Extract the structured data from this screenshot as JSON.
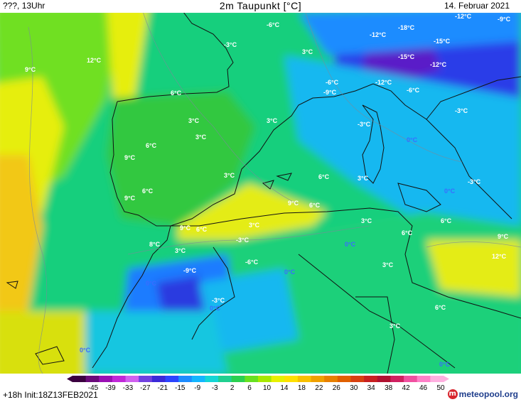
{
  "header": {
    "left": "???, 13Uhr",
    "title": "2m Taupunkt [°C]",
    "date": "14. Februar 2021"
  },
  "footer": {
    "run": "+18h  Init:18Z13FEB2021",
    "brand": "meteopool.org",
    "brand_icon": "meteopool-logo-icon"
  },
  "legend": {
    "ticks": [
      "-45",
      "-39",
      "-33",
      "-27",
      "-21",
      "-15",
      "-9",
      "-3",
      "2",
      "6",
      "10",
      "14",
      "18",
      "22",
      "26",
      "30",
      "34",
      "38",
      "42",
      "46",
      "50"
    ],
    "colors": [
      "#3b0040",
      "#6a0a7a",
      "#9a10b4",
      "#c028d8",
      "#d060f0",
      "#7040e0",
      "#3a2ad8",
      "#2c44ff",
      "#1d8cff",
      "#13b6ff",
      "#14d6d6",
      "#20d090",
      "#2ad050",
      "#68e020",
      "#a8e800",
      "#e8f000",
      "#ffe000",
      "#f8c000",
      "#f0a000",
      "#e88000",
      "#e06000",
      "#d84010",
      "#c82020",
      "#b01030",
      "#d02060",
      "#f050a0",
      "#ff80c8",
      "#ffb0e0"
    ]
  },
  "map_labels": [
    {
      "text": "-6°C",
      "c": "w"
    },
    {
      "text": "-18°C",
      "c": "w"
    },
    {
      "text": "-12°C",
      "c": "w"
    },
    {
      "text": "-9°C",
      "c": "w"
    },
    {
      "text": "-3°C",
      "c": "w"
    },
    {
      "text": "3°C",
      "c": "w"
    },
    {
      "text": "-12°C",
      "c": "w"
    },
    {
      "text": "-15°C",
      "c": "w"
    },
    {
      "text": "9°C",
      "c": "w"
    },
    {
      "text": "12°C",
      "c": "w"
    },
    {
      "text": "-15°C",
      "c": "w"
    },
    {
      "text": "-12°C",
      "c": "w"
    },
    {
      "text": "-6°C",
      "c": "w"
    },
    {
      "text": "-12°C",
      "c": "w"
    },
    {
      "text": "-9°C",
      "c": "w"
    },
    {
      "text": "-6°C",
      "c": "w"
    },
    {
      "text": "6°C",
      "c": "w"
    },
    {
      "text": "-3°C",
      "c": "w"
    },
    {
      "text": "3°C",
      "c": "w"
    },
    {
      "text": "3°C",
      "c": "w"
    },
    {
      "text": "3°C",
      "c": "w"
    },
    {
      "text": "-3°C",
      "c": "w"
    },
    {
      "text": "6°C",
      "c": "w"
    },
    {
      "text": "0°C",
      "c": "b"
    },
    {
      "text": "9°C",
      "c": "w"
    },
    {
      "text": "3°C",
      "c": "w"
    },
    {
      "text": "6°C",
      "c": "w"
    },
    {
      "text": "3°C",
      "c": "w"
    },
    {
      "text": "6°C",
      "c": "w"
    },
    {
      "text": "0°C",
      "c": "b"
    },
    {
      "text": "-3°C",
      "c": "w"
    },
    {
      "text": "9°C",
      "c": "w"
    },
    {
      "text": "9°C",
      "c": "w"
    },
    {
      "text": "6°C",
      "c": "w"
    },
    {
      "text": "3°C",
      "c": "w"
    },
    {
      "text": "6°C",
      "c": "w"
    },
    {
      "text": "9°C",
      "c": "w"
    },
    {
      "text": "6°C",
      "c": "w"
    },
    {
      "text": "3°C",
      "c": "w"
    },
    {
      "text": "-3°C",
      "c": "w"
    },
    {
      "text": "6°C",
      "c": "w"
    },
    {
      "text": "9°C",
      "c": "w"
    },
    {
      "text": "0°C",
      "c": "b"
    },
    {
      "text": "8°C",
      "c": "w"
    },
    {
      "text": "3°C",
      "c": "w"
    },
    {
      "text": "-6°C",
      "c": "w"
    },
    {
      "text": "12°C",
      "c": "w"
    },
    {
      "text": "-9°C",
      "c": "w"
    },
    {
      "text": "0°C",
      "c": "b"
    },
    {
      "text": "3°C",
      "c": "w"
    },
    {
      "text": "0°C",
      "c": "b"
    },
    {
      "text": "-3°C",
      "c": "w"
    },
    {
      "text": "0°C",
      "c": "b"
    },
    {
      "text": "6°C",
      "c": "w"
    },
    {
      "text": "3°C",
      "c": "w"
    },
    {
      "text": "0°C",
      "c": "b"
    },
    {
      "text": "0°C",
      "c": "b"
    }
  ]
}
